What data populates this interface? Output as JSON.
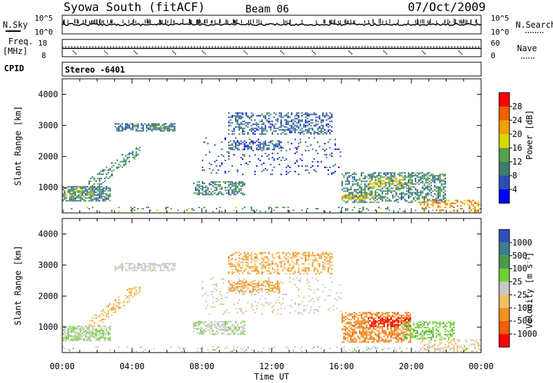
{
  "header": {
    "station": "Syowa South (fitACF)",
    "beam": "Beam 06",
    "date": "07/Oct/2009"
  },
  "aux_labels": {
    "nsky": "N.Sky",
    "nsky_ticks": [
      "10^5",
      "10^0"
    ],
    "nsearch": "N.Search",
    "nsearch_ticks": [
      "10^5",
      "10^0"
    ],
    "freq": "Freq.",
    "freq_unit": "[MHz]",
    "freq_ticks": [
      "18",
      "8"
    ],
    "nave": "Nave",
    "nave_ticks": [
      "60",
      "0"
    ],
    "cpid": "CPID",
    "cpid_value": "Stereo -6401"
  },
  "xaxis": {
    "title": "Time UT",
    "ticks": [
      "00:00",
      "04:00",
      "08:00",
      "12:00",
      "16:00",
      "20:00",
      "00:00"
    ],
    "range_hours": [
      0,
      24
    ]
  },
  "colors": {
    "power": [
      "#0000ff",
      "#2a4fb0",
      "#3a7f6a",
      "#58a24a",
      "#d8d800",
      "#f0a000",
      "#f06000",
      "#ff0000"
    ],
    "velocity": [
      "#3050c0",
      "#3a7f8a",
      "#4a9a4a",
      "#70d030",
      "#c8c8c8",
      "#f0c060",
      "#f09020",
      "#f06000",
      "#ff0000"
    ]
  },
  "chart_data": [
    {
      "type": "heatmap",
      "name": "power",
      "ylabel": "Slant Range [km]",
      "yticks": [
        "1000",
        "2000",
        "3000",
        "4000"
      ],
      "ylim": [
        180,
        4500
      ],
      "xlim": [
        0,
        24
      ],
      "colorbar": {
        "label": "Power [dB]",
        "ticks": [
          "4",
          "8",
          "12",
          "16",
          "20",
          "24",
          "28"
        ],
        "range": [
          0,
          30
        ]
      },
      "regions": [
        {
          "t0": 0.0,
          "t1": 2.8,
          "r0": 550,
          "r1": 1050,
          "level": 9,
          "density": 0.7
        },
        {
          "t0": 0.2,
          "t1": 1.8,
          "r0": 700,
          "r1": 950,
          "level": 15,
          "density": 0.5
        },
        {
          "t0": 1.5,
          "t1": 4.5,
          "r0": 1000,
          "r1": 2300,
          "level": 10,
          "density": 0.35,
          "slope": 1
        },
        {
          "t0": 3.0,
          "t1": 6.5,
          "r0": 2800,
          "r1": 3050,
          "level": 8,
          "density": 0.6
        },
        {
          "t0": 5.0,
          "t1": 6.5,
          "r0": 2850,
          "r1": 3000,
          "level": 13,
          "density": 0.5
        },
        {
          "t0": 7.5,
          "t1": 10.5,
          "r0": 750,
          "r1": 1200,
          "level": 9,
          "density": 0.55
        },
        {
          "t0": 9.5,
          "t1": 15.5,
          "r0": 2700,
          "r1": 3400,
          "level": 7,
          "density": 0.45
        },
        {
          "t0": 9.5,
          "t1": 12.5,
          "r0": 2200,
          "r1": 2500,
          "level": 7,
          "density": 0.5
        },
        {
          "t0": 8.0,
          "t1": 16.0,
          "r0": 1400,
          "r1": 2600,
          "level": 6,
          "density": 0.1
        },
        {
          "t0": 16.0,
          "t1": 22.0,
          "r0": 500,
          "r1": 1500,
          "level": 10,
          "density": 0.55
        },
        {
          "t0": 17.5,
          "t1": 20.0,
          "r0": 1000,
          "r1": 1300,
          "level": 18,
          "density": 0.5
        },
        {
          "t0": 16.0,
          "t1": 18.0,
          "r0": 600,
          "r1": 800,
          "level": 19,
          "density": 0.4
        },
        {
          "t0": 20.5,
          "t1": 24.0,
          "r0": 200,
          "r1": 600,
          "level": 22,
          "density": 0.35
        },
        {
          "t0": 0.0,
          "t1": 24.0,
          "r0": 200,
          "r1": 400,
          "level": 12,
          "density": 0.12
        }
      ]
    },
    {
      "type": "heatmap",
      "name": "velocity",
      "ylabel": "Slant Range [km]",
      "yticks": [
        "1000",
        "2000",
        "3000",
        "4000"
      ],
      "ylim": [
        180,
        4500
      ],
      "xlim": [
        0,
        24
      ],
      "colorbar": {
        "label": "Velocity [m s^-1]",
        "ticks": [
          "1000",
          "500",
          "100",
          "25",
          "-25",
          "-100",
          "-500",
          "-1000"
        ],
        "range": [
          -1200,
          1200
        ]
      },
      "regions": [
        {
          "t0": 0.0,
          "t1": 2.8,
          "r0": 550,
          "r1": 1050,
          "level": 150,
          "density": 0.7
        },
        {
          "t0": 1.5,
          "t1": 4.5,
          "r0": 1000,
          "r1": 2300,
          "level": -300,
          "density": 0.35,
          "slope": 1
        },
        {
          "t0": 3.0,
          "t1": 6.5,
          "r0": 2800,
          "r1": 3050,
          "level": 0,
          "density": 0.6
        },
        {
          "t0": 7.5,
          "t1": 10.5,
          "r0": 750,
          "r1": 1200,
          "level": 60,
          "density": 0.55
        },
        {
          "t0": 9.5,
          "t1": 15.5,
          "r0": 2700,
          "r1": 3400,
          "level": -400,
          "density": 0.45
        },
        {
          "t0": 9.5,
          "t1": 12.5,
          "r0": 2100,
          "r1": 2500,
          "level": -500,
          "density": 0.5
        },
        {
          "t0": 8.0,
          "t1": 16.0,
          "r0": 1400,
          "r1": 2600,
          "level": -60,
          "density": 0.1
        },
        {
          "t0": 16.0,
          "t1": 20.0,
          "r0": 500,
          "r1": 1500,
          "level": -600,
          "density": 0.6
        },
        {
          "t0": 17.5,
          "t1": 20.0,
          "r0": 1000,
          "r1": 1300,
          "level": -1100,
          "density": 0.55
        },
        {
          "t0": 19.5,
          "t1": 22.5,
          "r0": 600,
          "r1": 1200,
          "level": 300,
          "density": 0.45
        },
        {
          "t0": 20.5,
          "t1": 24.0,
          "r0": 200,
          "r1": 600,
          "level": -200,
          "density": 0.35
        },
        {
          "t0": 0.0,
          "t1": 24.0,
          "r0": 200,
          "r1": 400,
          "level": 50,
          "density": 0.12
        }
      ]
    }
  ]
}
